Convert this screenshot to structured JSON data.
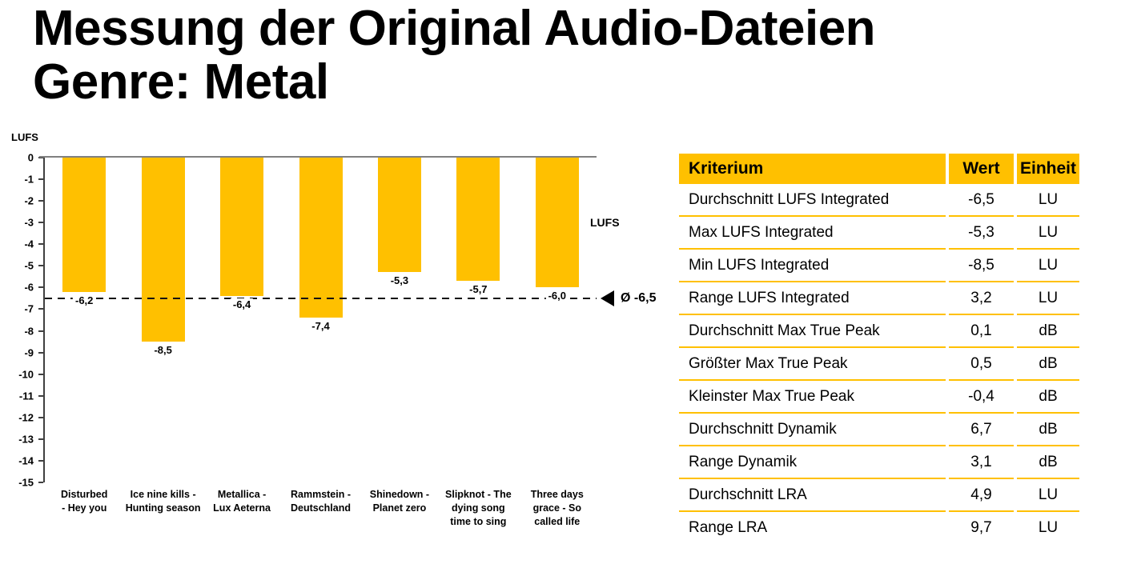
{
  "slide": {
    "title_line1": "Messung der Original Audio-Dateien",
    "title_line2": "Genre: Metal"
  },
  "colors": {
    "accent": "#FFC000",
    "zero_line": "#808080",
    "axis": "#404040",
    "text": "#000000"
  },
  "chart_data": {
    "type": "bar",
    "title": "",
    "xlabel": "",
    "ylabel": "LUFS",
    "legend": [
      "LUFS"
    ],
    "legend_position": "right",
    "grid": false,
    "ylim": [
      -15,
      0
    ],
    "ytick_labels": [
      "0",
      "-1",
      "-2",
      "-3",
      "-4",
      "-5",
      "-6",
      "-7",
      "-8",
      "-9",
      "-10",
      "-11",
      "-12",
      "-13",
      "-14",
      "-15"
    ],
    "categories": [
      "Disturbed - Hey you",
      "Ice nine kills - Hunting season",
      "Metallica - Lux Aeterna",
      "Rammstein - Deutschland",
      "Shinedown - Planet zero",
      "Slipknot - The dying song time to sing",
      "Three days grace - So called life"
    ],
    "category_lines": [
      [
        "Disturbed",
        "- Hey you"
      ],
      [
        "Ice nine kills -",
        "Hunting season"
      ],
      [
        "Metallica -",
        "Lux Aeterna"
      ],
      [
        "Rammstein -",
        "Deutschland"
      ],
      [
        "Shinedown -",
        "Planet zero"
      ],
      [
        "Slipknot - The",
        "dying song",
        "time to sing"
      ],
      [
        "Three days",
        "grace - So",
        "called life"
      ]
    ],
    "values": [
      -6.2,
      -8.5,
      -6.4,
      -7.4,
      -5.3,
      -5.7,
      -6.0
    ],
    "value_labels": [
      "-6,2",
      "-8,5",
      "-6,4",
      "-7,4",
      "-5,3",
      "-5,7",
      "-6,0"
    ],
    "bar_color": "#FFC000",
    "average_line": {
      "value": -6.5,
      "label": "Ø -6,5"
    }
  },
  "table": {
    "headers": [
      "Kriterium",
      "Wert",
      "Einheit"
    ],
    "rows": [
      [
        "Durchschnitt LUFS Integrated",
        "-6,5",
        "LU"
      ],
      [
        "Max LUFS Integrated",
        "-5,3",
        "LU"
      ],
      [
        "Min LUFS Integrated",
        "-8,5",
        "LU"
      ],
      [
        "Range LUFS Integrated",
        "3,2",
        "LU"
      ],
      [
        "Durchschnitt Max True Peak",
        "0,1",
        "dB"
      ],
      [
        "Größter Max True Peak",
        "0,5",
        "dB"
      ],
      [
        "Kleinster Max True Peak",
        "-0,4",
        "dB"
      ],
      [
        "Durchschnitt Dynamik",
        "6,7",
        "dB"
      ],
      [
        "Range Dynamik",
        "3,1",
        "dB"
      ],
      [
        "Durchschnitt LRA",
        "4,9",
        "LU"
      ],
      [
        "Range LRA",
        "9,7",
        "LU"
      ]
    ]
  }
}
